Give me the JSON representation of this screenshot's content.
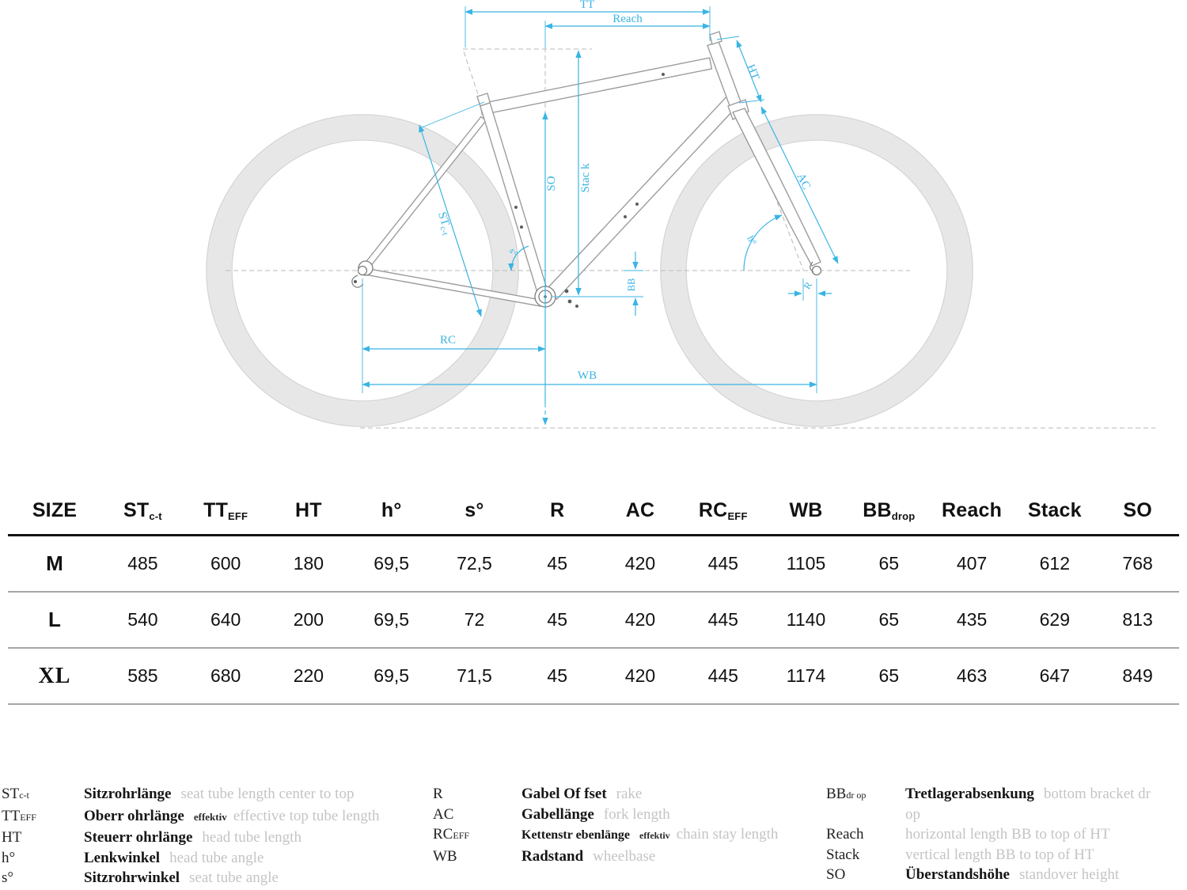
{
  "diagram": {
    "accent": "#3ab4e3",
    "labels": {
      "tt": "TT",
      "reach": "Reach",
      "ht": "HT",
      "so": "SO",
      "stack": "Stac k",
      "st_main": "ST",
      "st_sub": "c-t",
      "s_angle": "s°",
      "h_angle": "h°",
      "ac": "AC",
      "r": "R",
      "bb": "BB",
      "rc": "RC",
      "wb": "WB"
    }
  },
  "table": {
    "headers": [
      {
        "label": "SIZE",
        "sub": ""
      },
      {
        "label": "ST",
        "sub": "c-t"
      },
      {
        "label": "TT",
        "sub": "EFF"
      },
      {
        "label": "HT",
        "sub": ""
      },
      {
        "label": "h°",
        "sub": ""
      },
      {
        "label": "s°",
        "sub": ""
      },
      {
        "label": "R",
        "sub": ""
      },
      {
        "label": "AC",
        "sub": ""
      },
      {
        "label": "RC",
        "sub": "EFF"
      },
      {
        "label": "WB",
        "sub": ""
      },
      {
        "label": "BB",
        "sub": "drop"
      },
      {
        "label": "Reach",
        "sub": ""
      },
      {
        "label": "Stack",
        "sub": ""
      },
      {
        "label": "SO",
        "sub": ""
      }
    ],
    "rows": [
      {
        "size": "M",
        "values": [
          "485",
          "600",
          "180",
          "69,5",
          "72,5",
          "45",
          "420",
          "445",
          "1105",
          "65",
          "407",
          "612",
          "768"
        ]
      },
      {
        "size": "L",
        "values": [
          "540",
          "640",
          "200",
          "69,5",
          "72",
          "45",
          "420",
          "445",
          "1140",
          "65",
          "435",
          "629",
          "813"
        ]
      },
      {
        "size": "XL",
        "values": [
          "585",
          "680",
          "220",
          "69,5",
          "71,5",
          "45",
          "420",
          "445",
          "1174",
          "65",
          "463",
          "647",
          "849"
        ]
      }
    ]
  },
  "legend": {
    "columns": [
      {
        "items": [
          {
            "abbr": "ST",
            "sub": "c-t",
            "term": "Sitzrohrlänge",
            "note": "",
            "gloss": "seat tube length center to top"
          },
          {
            "abbr": "TT",
            "sub": "EFF",
            "term": "Oberr ohrlänge",
            "note": "effektiv",
            "gloss": "effective top tube length"
          },
          {
            "abbr": "HT",
            "sub": "",
            "term": "Steuerr ohrlänge",
            "note": "",
            "gloss": "head tube length"
          },
          {
            "abbr": "h°",
            "sub": "",
            "term": "Lenkwinkel",
            "note": "",
            "gloss": "head tube angle"
          },
          {
            "abbr": "s°",
            "sub": "",
            "term": "Sitzrohrwinkel",
            "note": "",
            "gloss": "seat tube angle"
          }
        ]
      },
      {
        "items": [
          {
            "abbr": "R",
            "sub": "",
            "term": "Gabel Of fset",
            "note": "",
            "gloss": "rake"
          },
          {
            "abbr": "AC",
            "sub": "",
            "term": "Gabellänge",
            "note": "",
            "gloss": "fork length"
          },
          {
            "abbr": "RC",
            "sub": "EFF",
            "term": "Kettenstr ebenlänge",
            "note": "effektiv",
            "gloss": "chain stay length"
          },
          {
            "abbr": "WB",
            "sub": "",
            "term": "Radstand",
            "note": "",
            "gloss": "wheelbase"
          }
        ]
      },
      {
        "items": [
          {
            "abbr": "BB",
            "sub": "dr op",
            "term": "Tretlagerabsenkung",
            "note": "",
            "gloss": "bottom bracket dr  op"
          },
          {
            "abbr": "Reach",
            "sub": "",
            "term": "",
            "note": "",
            "gloss": "horizontal length BB to top of HT"
          },
          {
            "abbr": "Stack",
            "sub": "",
            "term": "",
            "note": "",
            "gloss": "vertical length BB to top of HT"
          },
          {
            "abbr": "SO",
            "sub": "",
            "term": "Überstandshöhe",
            "note": "",
            "gloss": "standover height"
          }
        ]
      }
    ]
  }
}
